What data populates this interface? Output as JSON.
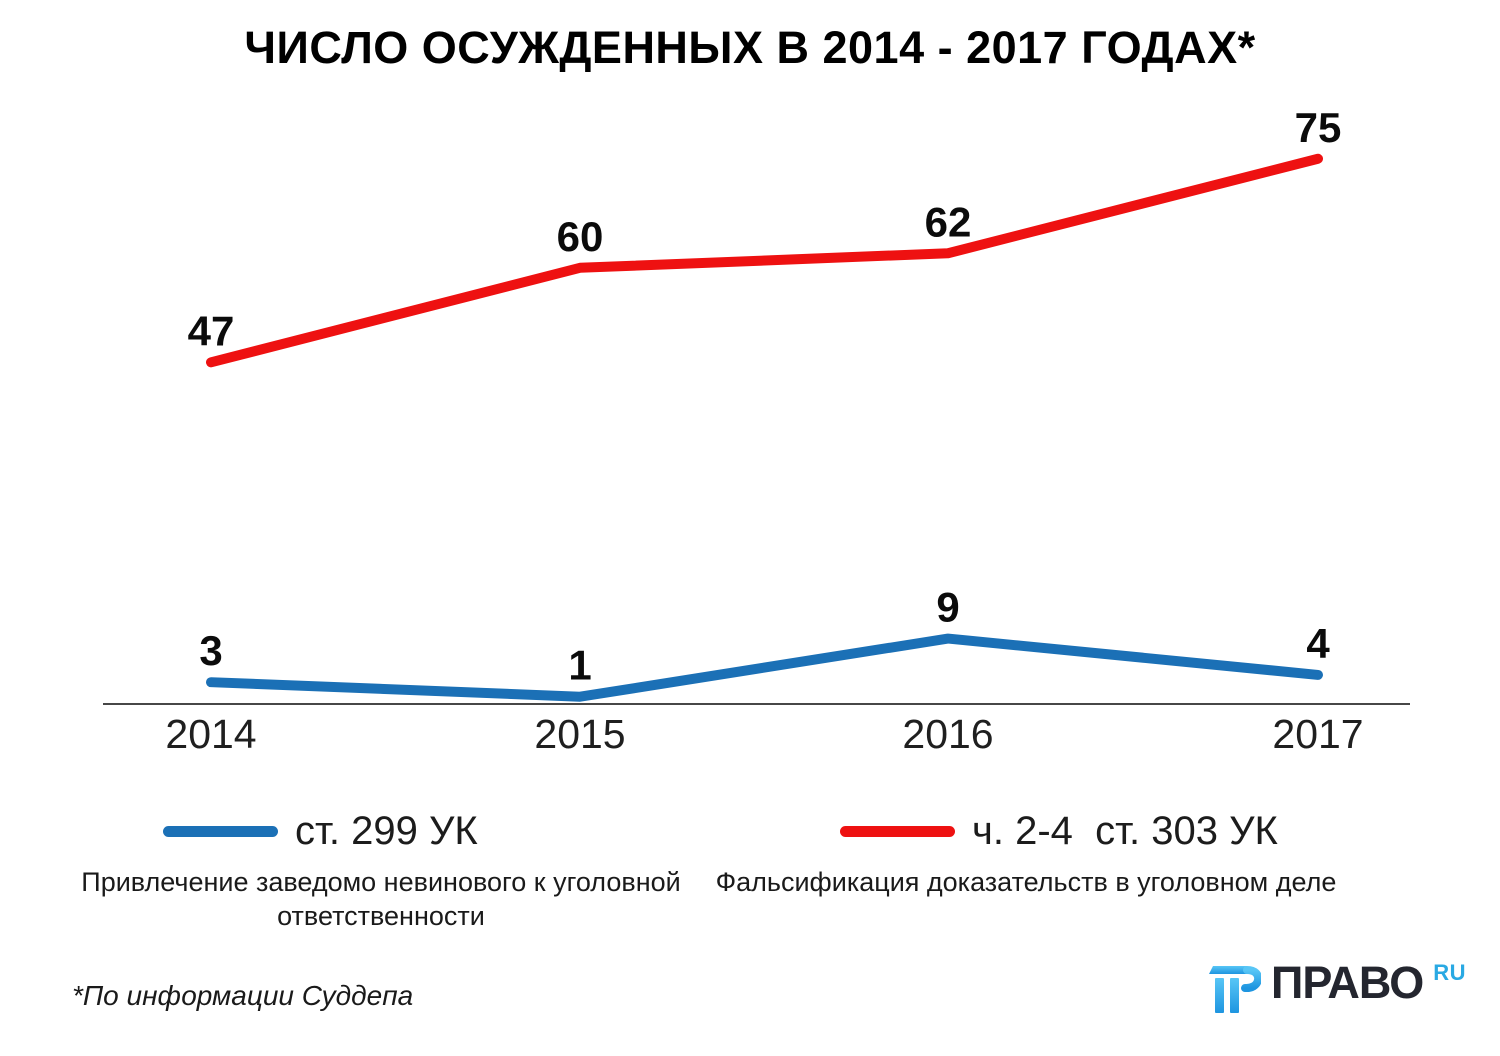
{
  "title": "ЧИСЛО ОСУЖДЕННЫХ В 2014 - 2017 ГОДАХ*",
  "chart_data": {
    "type": "line",
    "title": "ЧИСЛО ОСУЖДЕННЫХ В 2014 - 2017 ГОДАХ*",
    "categories": [
      "2014",
      "2015",
      "2016",
      "2017"
    ],
    "series": [
      {
        "name": "ст. 299 УК",
        "caption": "Привлечение заведомо невинового к уголовной ответственности",
        "color": "#1b70b6",
        "values": [
          3,
          1,
          9,
          4
        ]
      },
      {
        "name": "ч. 2-4  ст. 303 УК",
        "caption": "Фальсификация доказательств в уголовном деле",
        "color": "#ee1111",
        "values": [
          47,
          60,
          62,
          75
        ]
      }
    ],
    "xlabel": "",
    "ylabel": "",
    "ylim": [
      0,
      80
    ],
    "grid": false,
    "legend_position": "bottom",
    "data_labels": true
  },
  "footnote": "*По информации Суддепа",
  "logo": {
    "wordmark": "ПРАВО",
    "tld": "RU",
    "brand_blue": "#29a9e3",
    "brand_dark": "#24262f"
  },
  "colors": {
    "axis": "#474747",
    "label_text": "#0b0b0b",
    "tick_text": "#1f1f1f"
  }
}
